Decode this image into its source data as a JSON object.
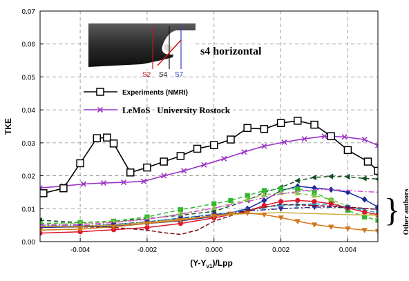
{
  "chart_data": {
    "type": "line",
    "ylabel": "TKE",
    "xlabel_main": "(Y-Y",
    "xlabel_sub": "v1",
    "xlabel_tail": ")/Lpp",
    "xlim": [
      -0.0052,
      0.0049
    ],
    "ylim": [
      0,
      0.07
    ],
    "xticks": [
      -0.004,
      -0.002,
      0.0,
      0.002,
      0.004
    ],
    "xtick_labels": [
      "-0.004",
      "-0.002",
      "0.000",
      "0.002",
      "0.004"
    ],
    "yticks": [
      0,
      0.01,
      0.02,
      0.03,
      0.04,
      0.05,
      0.06,
      0.07
    ],
    "ytick_labels": [
      "0.00",
      "0.01",
      "0.02",
      "0.03",
      "0.04",
      "0.05",
      "0.06",
      "0.07"
    ],
    "grid": "dashed",
    "inset": {
      "title": "s4 horizontal",
      "section_labels": [
        "S2",
        "S4",
        "S7"
      ],
      "section_colors": [
        "#c0141e",
        "#111111",
        "#3340c8"
      ]
    },
    "side_label": "Other authors",
    "series": [
      {
        "name": "Experiments (NMRI)",
        "color": "#000000",
        "marker": "square",
        "x": [
          -0.0051,
          -0.0045,
          -0.004,
          -0.0035,
          -0.0032,
          -0.003,
          -0.0025,
          -0.002,
          -0.0015,
          -0.001,
          -0.0005,
          0.0,
          0.0005,
          0.001,
          0.0015,
          0.002,
          0.0025,
          0.003,
          0.0035,
          0.004,
          0.0046,
          0.0049
        ],
        "y": [
          0.0147,
          0.0162,
          0.0238,
          0.0314,
          0.0316,
          0.0298,
          0.021,
          0.0225,
          0.0243,
          0.026,
          0.0282,
          0.0293,
          0.031,
          0.0345,
          0.0342,
          0.036,
          0.0367,
          0.0355,
          0.032,
          0.0278,
          0.0243,
          0.0215
        ]
      },
      {
        "name": "LeMoS   University Rostock",
        "color": "#9b33c6",
        "marker": "x",
        "x": [
          -0.0052,
          -0.0045,
          -0.0039,
          -0.0033,
          -0.0027,
          -0.0021,
          -0.0015,
          -0.0009,
          -0.0003,
          0.0003,
          0.0009,
          0.0015,
          0.0021,
          0.0027,
          0.0033,
          0.0039,
          0.0045,
          0.0049
        ],
        "y": [
          0.0163,
          0.0169,
          0.0175,
          0.0178,
          0.018,
          0.0183,
          0.02,
          0.0215,
          0.0233,
          0.0252,
          0.0272,
          0.029,
          0.0302,
          0.0312,
          0.032,
          0.0318,
          0.031,
          0.0292
        ]
      },
      {
        "color": "#14501e",
        "marker": "triangle-left",
        "dash": "6,4",
        "x": [
          -0.0052,
          -0.004,
          -0.003,
          -0.002,
          -0.001,
          0.0,
          0.001,
          0.0015,
          0.002,
          0.0025,
          0.003,
          0.0035,
          0.004,
          0.0045,
          0.0049
        ],
        "y": [
          0.0065,
          0.0058,
          0.0062,
          0.007,
          0.008,
          0.0092,
          0.0125,
          0.015,
          0.0165,
          0.0185,
          0.0195,
          0.0198,
          0.0197,
          0.0192,
          0.019
        ]
      },
      {
        "color": "#1a2b9c",
        "marker": "diamond",
        "x": [
          -0.0052,
          -0.004,
          -0.003,
          -0.002,
          -0.001,
          0.0,
          0.001,
          0.0015,
          0.002,
          0.0025,
          0.003,
          0.0035,
          0.004,
          0.0045,
          0.0049
        ],
        "y": [
          0.0043,
          0.0045,
          0.0047,
          0.0055,
          0.0063,
          0.0076,
          0.01,
          0.0125,
          0.0155,
          0.0168,
          0.0163,
          0.0158,
          0.015,
          0.0128,
          0.0105
        ]
      },
      {
        "color": "#2fb82f",
        "marker": "square",
        "dash": "6,4",
        "x": [
          -0.0052,
          -0.004,
          -0.003,
          -0.002,
          -0.001,
          0.0,
          0.0005,
          0.001,
          0.0015,
          0.002,
          0.0025,
          0.003,
          0.0035,
          0.004,
          0.0045,
          0.0049
        ],
        "y": [
          0.0055,
          0.0058,
          0.0062,
          0.0075,
          0.0097,
          0.0115,
          0.0125,
          0.014,
          0.0155,
          0.016,
          0.016,
          0.015,
          0.0125,
          0.0095,
          0.0075,
          0.0065
        ]
      },
      {
        "color": "#8bc34a",
        "marker": "triangle-up",
        "dash": "5,4",
        "x": [
          -0.0052,
          -0.004,
          -0.003,
          -0.002,
          -0.001,
          0.0,
          0.001,
          0.0015,
          0.002,
          0.0025,
          0.003,
          0.0035,
          0.004,
          0.0045,
          0.0049
        ],
        "y": [
          0.0052,
          0.0055,
          0.006,
          0.0068,
          0.0085,
          0.0102,
          0.0128,
          0.0142,
          0.0148,
          0.0147,
          0.014,
          0.0128,
          0.0108,
          0.009,
          0.0075
        ]
      },
      {
        "color": "#28a9d8",
        "marker": "triangle-right",
        "dash": "7,3",
        "x": [
          -0.0052,
          -0.004,
          -0.003,
          -0.002,
          -0.001,
          0.0,
          0.001,
          0.0015,
          0.002,
          0.0025,
          0.003,
          0.0035,
          0.004,
          0.0045,
          0.0049
        ],
        "y": [
          0.0048,
          0.0047,
          0.0052,
          0.006,
          0.0072,
          0.0083,
          0.0095,
          0.0105,
          0.011,
          0.0112,
          0.0115,
          0.0112,
          0.0105,
          0.0095,
          0.0088
        ]
      },
      {
        "color": "#e0162a",
        "marker": "circle",
        "x": [
          -0.0052,
          -0.004,
          -0.003,
          -0.002,
          -0.001,
          0.0,
          0.001,
          0.0015,
          0.002,
          0.0025,
          0.003,
          0.0035,
          0.004,
          0.0045,
          0.0049
        ],
        "y": [
          0.0026,
          0.003,
          0.0036,
          0.0043,
          0.0055,
          0.0072,
          0.0092,
          0.011,
          0.0122,
          0.0125,
          0.0122,
          0.0115,
          0.0102,
          0.009,
          0.0082
        ]
      },
      {
        "color": "#3b2a8c",
        "marker": "triangle-down",
        "dash": "8,3,2,3",
        "x": [
          -0.0052,
          -0.004,
          -0.003,
          -0.002,
          -0.001,
          0.0,
          0.001,
          0.002,
          0.003,
          0.004,
          0.0049
        ],
        "y": [
          0.0047,
          0.0048,
          0.0052,
          0.006,
          0.007,
          0.0082,
          0.0093,
          0.01,
          0.0105,
          0.0104,
          0.0098
        ]
      },
      {
        "color": "#d64fd6",
        "marker": "none",
        "dash": "8,3,2,3",
        "x": [
          -0.0052,
          -0.004,
          -0.003,
          -0.002,
          -0.001,
          0.0,
          0.001,
          0.002,
          0.0025,
          0.003,
          0.0035,
          0.004,
          0.0045,
          0.0049
        ],
        "y": [
          0.005,
          0.0052,
          0.0058,
          0.0068,
          0.0083,
          0.0102,
          0.0122,
          0.0145,
          0.0152,
          0.0158,
          0.0158,
          0.0155,
          0.0152,
          0.015
        ]
      },
      {
        "color": "#7a0a14",
        "marker": "none",
        "dash": "6,3",
        "x": [
          -0.0052,
          -0.004,
          -0.003,
          -0.002,
          -0.0015,
          -0.001,
          -0.0005,
          0.0,
          0.001,
          0.002,
          0.003,
          0.004,
          0.0049
        ],
        "y": [
          0.0045,
          0.0045,
          0.0043,
          0.0035,
          0.0027,
          0.0022,
          0.0035,
          0.0062,
          0.0095,
          0.0113,
          0.011,
          0.0105,
          0.0098
        ]
      },
      {
        "color": "#c8b040",
        "marker": "none",
        "x": [
          -0.0052,
          -0.004,
          -0.003,
          -0.002,
          -0.001,
          0.0,
          0.001,
          0.002,
          0.003,
          0.004,
          0.0049
        ],
        "y": [
          0.0046,
          0.0047,
          0.005,
          0.0058,
          0.0068,
          0.0078,
          0.0085,
          0.0088,
          0.0085,
          0.0082,
          0.008
        ]
      },
      {
        "color": "#d07518",
        "marker": "triangle-down",
        "x": [
          -0.0052,
          -0.004,
          -0.003,
          -0.002,
          -0.001,
          0.0,
          0.0005,
          0.001,
          0.0015,
          0.002,
          0.0025,
          0.003,
          0.0035,
          0.004,
          0.0045,
          0.0049
        ],
        "y": [
          0.0035,
          0.0038,
          0.0045,
          0.0055,
          0.0065,
          0.0078,
          0.0085,
          0.0087,
          0.0082,
          0.0073,
          0.0062,
          0.0052,
          0.0045,
          0.004,
          0.0035,
          0.0032
        ]
      }
    ]
  }
}
